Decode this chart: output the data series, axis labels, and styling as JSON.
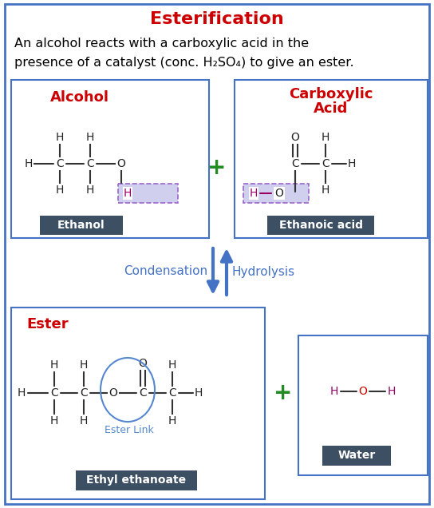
{
  "title": "Esterification",
  "title_color": "#cc0000",
  "desc1": "An alcohol reacts with a carboxylic acid in the",
  "desc2": "presence of a catalyst (conc. H₂SO₄) to give an ester.",
  "outer_border_color": "#4472c4",
  "box_color": "#4472c4",
  "label_bg_color": "#3d4f63",
  "red_label_color": "#cc0000",
  "green_plus_color": "#228B22",
  "highlight_color": "#d0d0ee",
  "highlight_border_color": "#9966cc",
  "arrow_color": "#4472c4",
  "bond_color": "#333333",
  "atom_color": "#222222",
  "ester_link_circle_color": "#5588cc",
  "ester_link_text_color": "#5588cc",
  "water_O_color": "#cc0000",
  "water_H_color": "#990066",
  "figsize": [
    5.44,
    6.36
  ],
  "dpi": 100
}
